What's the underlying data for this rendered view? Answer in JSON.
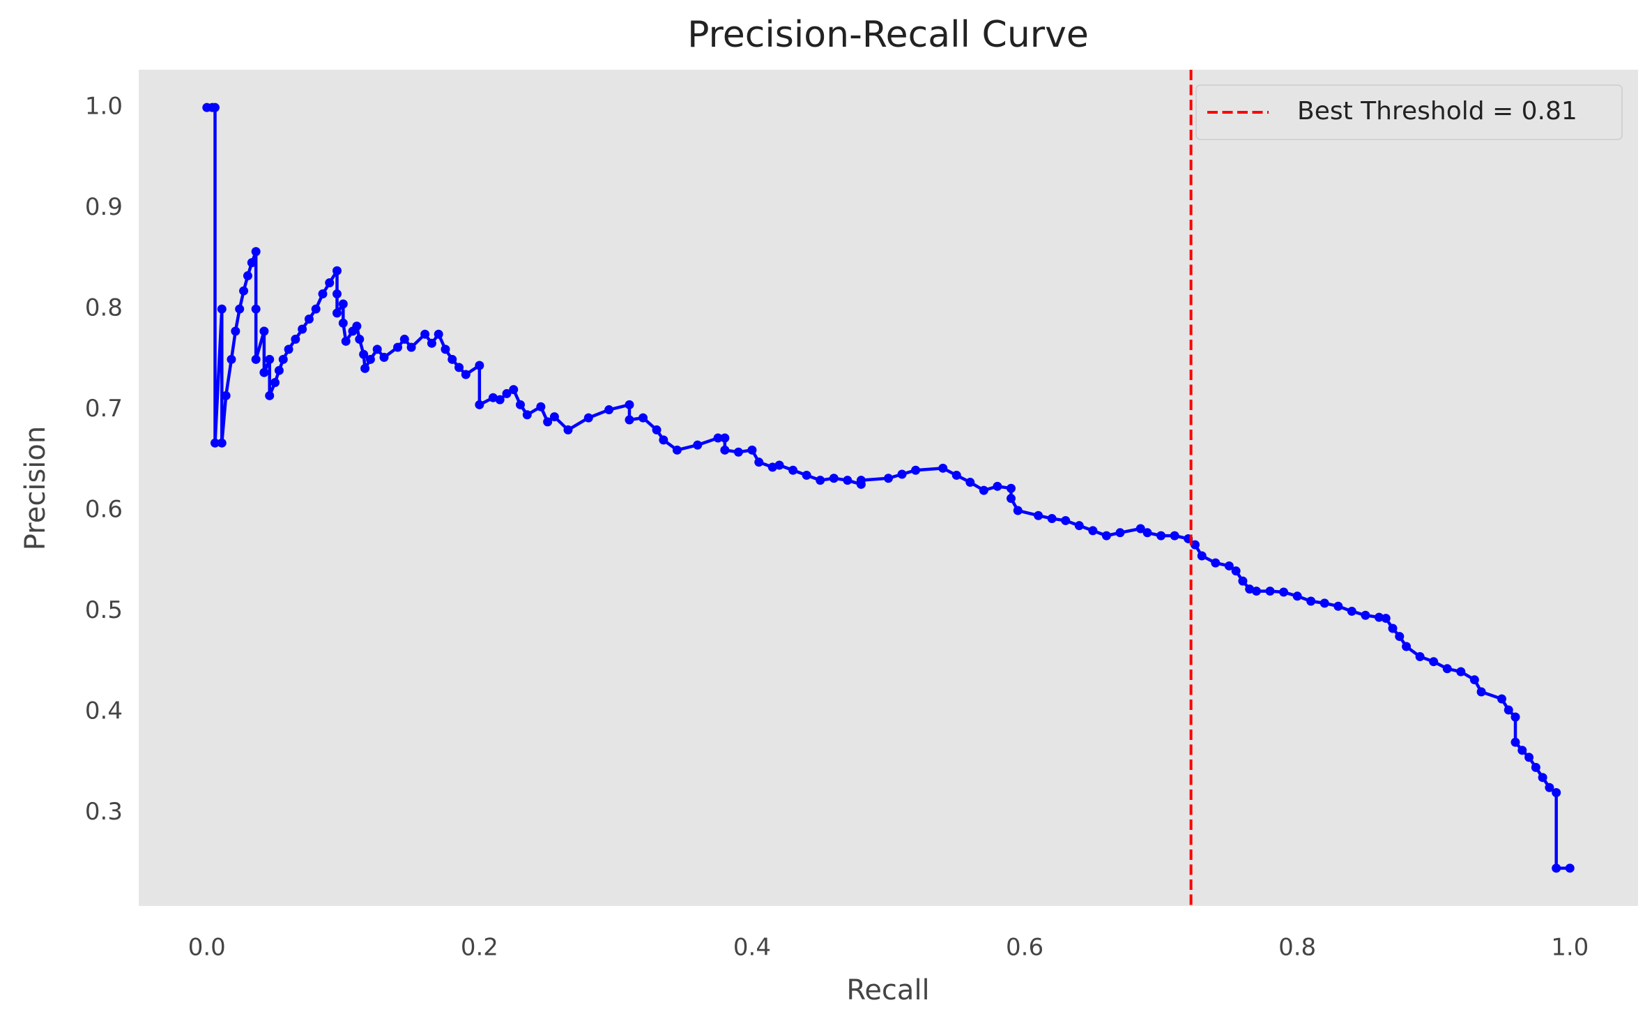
{
  "chart_data": {
    "type": "line",
    "title": "Precision-Recall Curve",
    "x_label": "Recall",
    "y_label": "Precision",
    "xlim": [
      -0.05,
      1.05
    ],
    "ylim": [
      0.2075,
      1.0375
    ],
    "xticks": [
      {
        "value": 0,
        "label": "0.0"
      },
      0.2,
      0.4,
      0.6,
      0.8,
      {
        "value": 1,
        "label": "1.0"
      }
    ],
    "yticks": [
      0.3,
      0.4,
      0.5,
      0.6,
      0.7,
      0.8,
      0.9,
      {
        "value": 1,
        "label": "1.0"
      }
    ],
    "grid": false,
    "legend": "upper right",
    "series": [
      {
        "color": "#0000ff",
        "x": [
          0.0,
          0.004,
          0.006,
          0.006,
          0.011,
          0.011,
          0.014,
          0.018,
          0.021,
          0.024,
          0.027,
          0.03,
          0.033,
          0.036,
          0.036,
          0.036,
          0.042,
          0.042,
          0.046,
          0.046,
          0.05,
          0.053,
          0.056,
          0.06,
          0.065,
          0.07,
          0.075,
          0.08,
          0.085,
          0.09,
          0.0955,
          0.0955,
          0.0955,
          0.1,
          0.1,
          0.102,
          0.107,
          0.11,
          0.112,
          0.115,
          0.116,
          0.12,
          0.125,
          0.13,
          0.14,
          0.145,
          0.15,
          0.16,
          0.165,
          0.17,
          0.175,
          0.18,
          0.185,
          0.19,
          0.2,
          0.2,
          0.21,
          0.215,
          0.22,
          0.225,
          0.23,
          0.235,
          0.245,
          0.25,
          0.255,
          0.265,
          0.28,
          0.295,
          0.31,
          0.31,
          0.32,
          0.33,
          0.335,
          0.345,
          0.36,
          0.375,
          0.38,
          0.38,
          0.39,
          0.4,
          0.405,
          0.415,
          0.42,
          0.43,
          0.44,
          0.45,
          0.46,
          0.47,
          0.48,
          0.48,
          0.5,
          0.51,
          0.52,
          0.54,
          0.55,
          0.56,
          0.57,
          0.58,
          0.59,
          0.59,
          0.595,
          0.61,
          0.62,
          0.63,
          0.64,
          0.65,
          0.66,
          0.67,
          0.685,
          0.69,
          0.7,
          0.71,
          0.72,
          0.725,
          0.73,
          0.74,
          0.75,
          0.755,
          0.76,
          0.765,
          0.77,
          0.78,
          0.79,
          0.8,
          0.81,
          0.82,
          0.83,
          0.84,
          0.85,
          0.86,
          0.865,
          0.87,
          0.875,
          0.88,
          0.89,
          0.9,
          0.91,
          0.92,
          0.93,
          0.935,
          0.95,
          0.955,
          0.96,
          0.96,
          0.965,
          0.97,
          0.975,
          0.98,
          0.985,
          0.99,
          0.99,
          1.0
        ],
        "values": [
          1.0,
          1.0,
          1.0,
          0.667,
          0.8,
          0.667,
          0.714,
          0.75,
          0.778,
          0.8,
          0.818,
          0.833,
          0.846,
          0.857,
          0.8,
          0.75,
          0.778,
          0.737,
          0.75,
          0.714,
          0.727,
          0.739,
          0.75,
          0.76,
          0.77,
          0.78,
          0.79,
          0.8,
          0.815,
          0.826,
          0.838,
          0.815,
          0.796,
          0.805,
          0.786,
          0.768,
          0.778,
          0.783,
          0.77,
          0.755,
          0.741,
          0.75,
          0.76,
          0.752,
          0.762,
          0.77,
          0.762,
          0.775,
          0.766,
          0.775,
          0.76,
          0.75,
          0.742,
          0.735,
          0.744,
          0.705,
          0.712,
          0.71,
          0.716,
          0.72,
          0.705,
          0.695,
          0.703,
          0.688,
          0.693,
          0.68,
          0.692,
          0.7,
          0.705,
          0.69,
          0.692,
          0.68,
          0.67,
          0.66,
          0.665,
          0.672,
          0.672,
          0.66,
          0.658,
          0.66,
          0.648,
          0.643,
          0.645,
          0.64,
          0.635,
          0.63,
          0.632,
          0.63,
          0.626,
          0.63,
          0.632,
          0.636,
          0.64,
          0.642,
          0.635,
          0.628,
          0.62,
          0.624,
          0.622,
          0.612,
          0.6,
          0.595,
          0.592,
          0.59,
          0.585,
          0.58,
          0.575,
          0.578,
          0.582,
          0.578,
          0.575,
          0.575,
          0.572,
          0.566,
          0.555,
          0.548,
          0.545,
          0.54,
          0.53,
          0.522,
          0.52,
          0.52,
          0.519,
          0.515,
          0.51,
          0.508,
          0.505,
          0.5,
          0.496,
          0.494,
          0.493,
          0.483,
          0.475,
          0.465,
          0.455,
          0.45,
          0.443,
          0.44,
          0.432,
          0.42,
          0.413,
          0.402,
          0.395,
          0.37,
          0.362,
          0.355,
          0.345,
          0.335,
          0.325,
          0.32,
          0.245,
          0.245
        ]
      }
    ],
    "threshold": {
      "x": 0.722,
      "label": "Best Threshold = 0.81",
      "color": "#ff0000"
    }
  }
}
